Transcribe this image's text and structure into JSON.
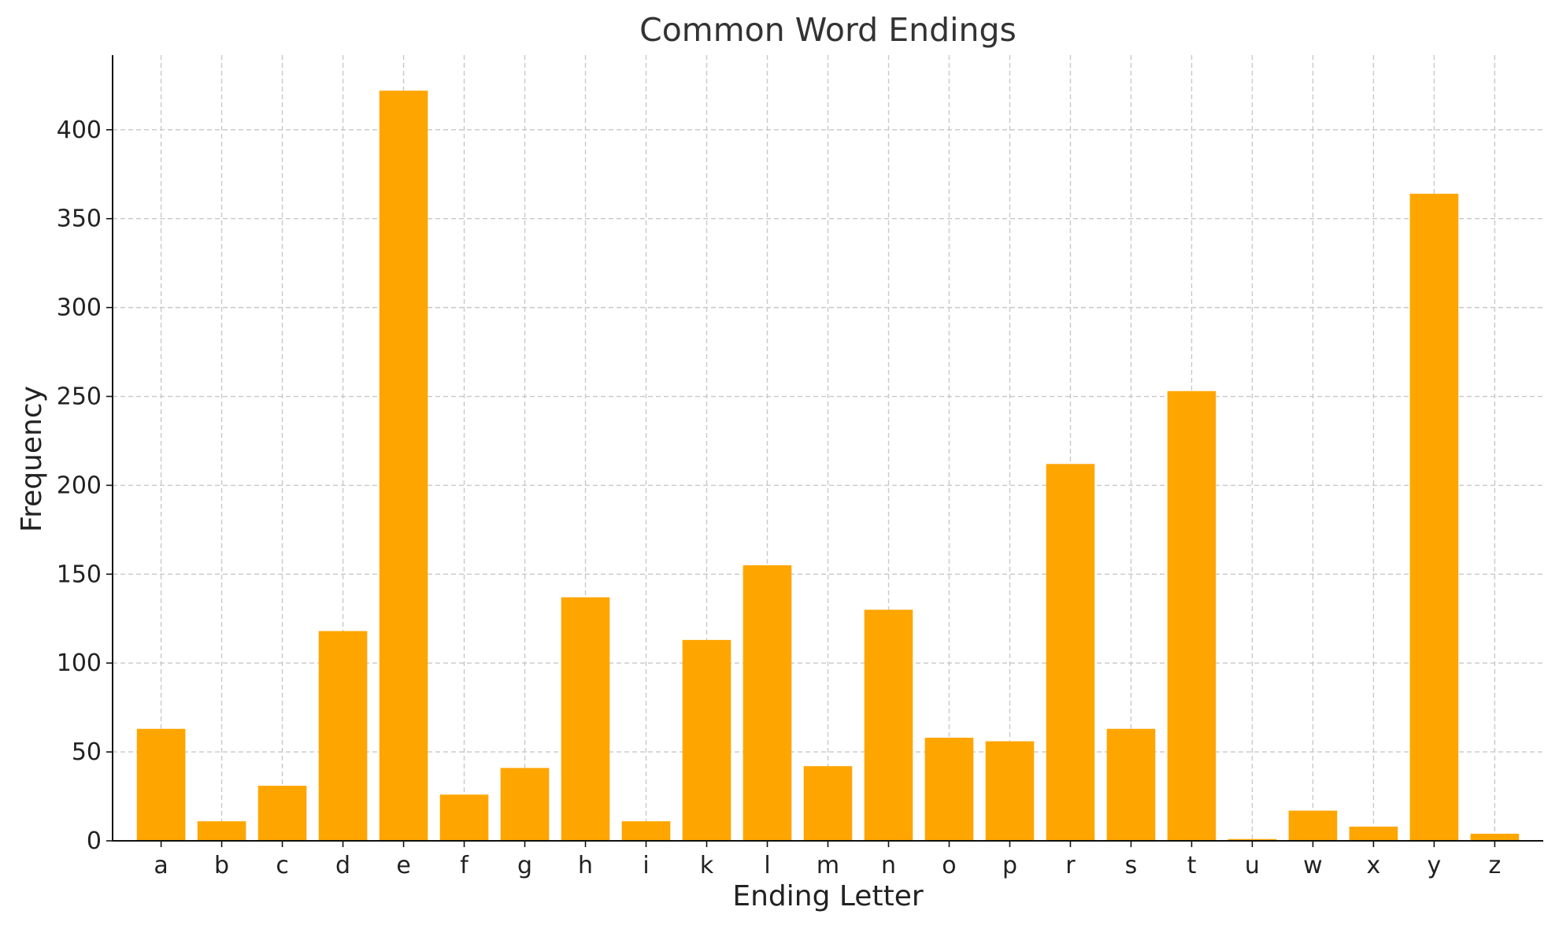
{
  "chart_data": {
    "type": "bar",
    "title": "Common Word Endings",
    "xlabel": "Ending Letter",
    "ylabel": "Frequency",
    "categories": [
      "a",
      "b",
      "c",
      "d",
      "e",
      "f",
      "g",
      "h",
      "i",
      "k",
      "l",
      "m",
      "n",
      "o",
      "p",
      "r",
      "s",
      "t",
      "u",
      "w",
      "x",
      "y",
      "z"
    ],
    "values": [
      63,
      11,
      31,
      118,
      422,
      26,
      41,
      137,
      11,
      113,
      155,
      42,
      130,
      58,
      56,
      212,
      63,
      253,
      1,
      17,
      8,
      364,
      4
    ],
    "ylim": [
      0,
      442
    ],
    "yticks": [
      0,
      50,
      100,
      150,
      200,
      250,
      300,
      350,
      400
    ],
    "grid": true,
    "bar_color": "#FFA500",
    "grid_color": "#c8c8c8"
  }
}
